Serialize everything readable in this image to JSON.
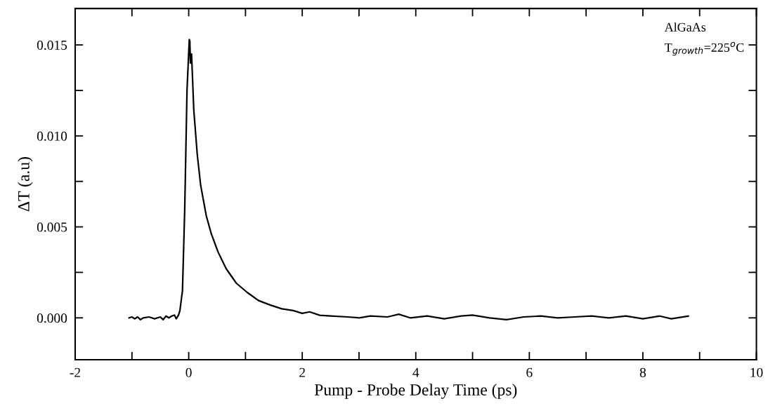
{
  "chart_data": {
    "type": "line",
    "xlabel": "Pump - Probe Delay Time (ps)",
    "ylabel": "ΔT (a.u)",
    "annotations": [
      "AlGaAs",
      "T$_{growth}$=225$^{o}$C"
    ],
    "xlim": [
      -2,
      10
    ],
    "ylim": [
      -0.0023,
      0.017
    ],
    "xticks": [
      -2,
      {
        "value": -1,
        "label": null
      },
      0,
      {
        "value": 1,
        "label": null
      },
      2,
      {
        "value": 3,
        "label": null
      },
      4,
      {
        "value": 5,
        "label": null
      },
      6,
      {
        "value": 7,
        "label": null
      },
      8,
      {
        "value": 9,
        "label": null
      },
      10
    ],
    "yticks": [
      {
        "value": 0,
        "label": "0.000"
      },
      {
        "value": 0.0025,
        "label": null
      },
      {
        "value": 0.005,
        "label": "0.005"
      },
      {
        "value": 0.0075,
        "label": null
      },
      {
        "value": 0.01,
        "label": "0.010"
      },
      {
        "value": 0.0125,
        "label": null
      },
      {
        "value": 0.015,
        "label": "0.015"
      }
    ],
    "grid": false,
    "legend": false,
    "marker": "none",
    "line_style": "solid",
    "series": [
      {
        "color": "#000000",
        "x": [
          -1.05,
          -1.0,
          -0.95,
          -0.9,
          -0.85,
          -0.8,
          -0.7,
          -0.6,
          -0.5,
          -0.45,
          -0.4,
          -0.35,
          -0.3,
          -0.25,
          -0.22,
          -0.18,
          -0.155,
          -0.11,
          -0.07,
          -0.03,
          0.01,
          0.02,
          0.03,
          0.05,
          0.09,
          0.15,
          0.21,
          0.31,
          0.4,
          0.52,
          0.66,
          0.84,
          1.03,
          1.23,
          1.44,
          1.64,
          1.84,
          2.0,
          2.13,
          2.31,
          2.5,
          2.8,
          3.0,
          3.2,
          3.5,
          3.7,
          3.9,
          4.2,
          4.5,
          4.8,
          5.0,
          5.3,
          5.6,
          5.9,
          6.2,
          6.5,
          6.8,
          7.1,
          7.4,
          7.7,
          8.0,
          8.3,
          8.5,
          8.8
        ],
        "values": [
          0,
          5e-05,
          -5e-05,
          5e-05,
          -0.0001,
          0,
          5e-05,
          -5e-05,
          5e-05,
          -0.0001,
          0.0001,
          0,
          0.0001,
          0.00015,
          -5e-05,
          0.00015,
          0.0004,
          0.0015,
          0.006,
          0.0125,
          0.0153,
          0.0152,
          0.014,
          0.0145,
          0.0114,
          0.009,
          0.0073,
          0.0056,
          0.0046,
          0.0036,
          0.0027,
          0.0019,
          0.0014,
          0.00095,
          0.0007,
          0.0005,
          0.0004,
          0.00025,
          0.00033,
          0.00014,
          0.0001,
          5e-05,
          0,
          0.0001,
          5e-05,
          0.0002,
          0,
          0.0001,
          -5e-05,
          0.0001,
          0.00015,
          0,
          -0.0001,
          5e-05,
          0.0001,
          0,
          5e-05,
          0.0001,
          0,
          0.0001,
          -5e-05,
          0.0001,
          -5e-05,
          0.0001
        ]
      }
    ]
  }
}
